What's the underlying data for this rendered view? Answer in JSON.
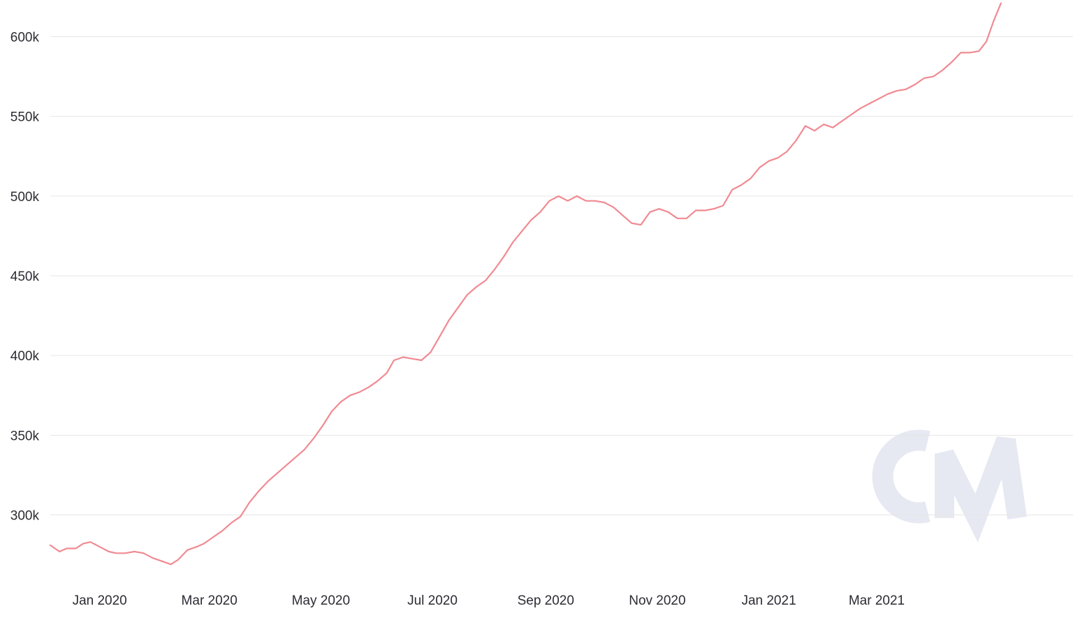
{
  "chart_data": {
    "type": "line",
    "title": "",
    "xlabel": "",
    "ylabel": "",
    "xlim": [
      "2019-12-05",
      "2021-04-30"
    ],
    "ylim": [
      263000,
      623000
    ],
    "grid": true,
    "x_ticks": [
      {
        "date": "2020-01-01",
        "label": "Jan 2020"
      },
      {
        "date": "2020-03-01",
        "label": "Mar 2020"
      },
      {
        "date": "2020-05-01",
        "label": "May 2020"
      },
      {
        "date": "2020-07-01",
        "label": "Jul 2020"
      },
      {
        "date": "2020-09-01",
        "label": "Sep 2020"
      },
      {
        "date": "2020-11-01",
        "label": "Nov 2020"
      },
      {
        "date": "2021-01-01",
        "label": "Jan 2021"
      },
      {
        "date": "2021-03-01",
        "label": "Mar 2021"
      }
    ],
    "y_ticks": [
      {
        "value": 300000,
        "label": "300k"
      },
      {
        "value": 350000,
        "label": "350k"
      },
      {
        "value": 400000,
        "label": "400k"
      },
      {
        "value": 450000,
        "label": "450k"
      },
      {
        "value": 500000,
        "label": "500k"
      },
      {
        "value": 550000,
        "label": "550k"
      },
      {
        "value": 600000,
        "label": "600k"
      }
    ],
    "series": [
      {
        "color": "#f08a92",
        "points": [
          [
            "2019-12-05",
            281000
          ],
          [
            "2019-12-10",
            277000
          ],
          [
            "2019-12-14",
            279000
          ],
          [
            "2019-12-19",
            279000
          ],
          [
            "2019-12-23",
            282000
          ],
          [
            "2019-12-27",
            283000
          ],
          [
            "2020-01-01",
            280000
          ],
          [
            "2020-01-06",
            277000
          ],
          [
            "2020-01-10",
            276000
          ],
          [
            "2020-01-15",
            276000
          ],
          [
            "2020-01-20",
            277000
          ],
          [
            "2020-01-25",
            276000
          ],
          [
            "2020-01-30",
            273000
          ],
          [
            "2020-02-04",
            271000
          ],
          [
            "2020-02-09",
            269000
          ],
          [
            "2020-02-13",
            272000
          ],
          [
            "2020-02-18",
            278000
          ],
          [
            "2020-02-23",
            280000
          ],
          [
            "2020-02-27",
            282000
          ],
          [
            "2020-03-03",
            286000
          ],
          [
            "2020-03-08",
            290000
          ],
          [
            "2020-03-13",
            295000
          ],
          [
            "2020-03-18",
            299000
          ],
          [
            "2020-03-23",
            308000
          ],
          [
            "2020-03-28",
            315000
          ],
          [
            "2020-04-02",
            321000
          ],
          [
            "2020-04-07",
            326000
          ],
          [
            "2020-04-12",
            331000
          ],
          [
            "2020-04-17",
            336000
          ],
          [
            "2020-04-22",
            341000
          ],
          [
            "2020-04-27",
            348000
          ],
          [
            "2020-05-02",
            356000
          ],
          [
            "2020-05-07",
            365000
          ],
          [
            "2020-05-12",
            371000
          ],
          [
            "2020-05-17",
            375000
          ],
          [
            "2020-05-22",
            377000
          ],
          [
            "2020-05-27",
            380000
          ],
          [
            "2020-06-01",
            384000
          ],
          [
            "2020-06-06",
            389000
          ],
          [
            "2020-06-10",
            397000
          ],
          [
            "2020-06-15",
            399000
          ],
          [
            "2020-06-20",
            398000
          ],
          [
            "2020-06-25",
            397000
          ],
          [
            "2020-06-30",
            402000
          ],
          [
            "2020-07-05",
            412000
          ],
          [
            "2020-07-10",
            422000
          ],
          [
            "2020-07-15",
            430000
          ],
          [
            "2020-07-20",
            438000
          ],
          [
            "2020-07-25",
            443000
          ],
          [
            "2020-07-30",
            447000
          ],
          [
            "2020-08-04",
            454000
          ],
          [
            "2020-08-09",
            462000
          ],
          [
            "2020-08-14",
            471000
          ],
          [
            "2020-08-19",
            478000
          ],
          [
            "2020-08-24",
            485000
          ],
          [
            "2020-08-29",
            490000
          ],
          [
            "2020-09-03",
            497000
          ],
          [
            "2020-09-08",
            500000
          ],
          [
            "2020-09-13",
            497000
          ],
          [
            "2020-09-18",
            500000
          ],
          [
            "2020-09-23",
            497000
          ],
          [
            "2020-09-28",
            497000
          ],
          [
            "2020-10-03",
            496000
          ],
          [
            "2020-10-08",
            493000
          ],
          [
            "2020-10-13",
            488000
          ],
          [
            "2020-10-18",
            483000
          ],
          [
            "2020-10-23",
            482000
          ],
          [
            "2020-10-28",
            490000
          ],
          [
            "2020-11-02",
            492000
          ],
          [
            "2020-11-07",
            490000
          ],
          [
            "2020-11-12",
            486000
          ],
          [
            "2020-11-17",
            486000
          ],
          [
            "2020-11-22",
            491000
          ],
          [
            "2020-11-27",
            491000
          ],
          [
            "2020-12-02",
            492000
          ],
          [
            "2020-12-07",
            494000
          ],
          [
            "2020-12-12",
            504000
          ],
          [
            "2020-12-17",
            507000
          ],
          [
            "2020-12-22",
            511000
          ],
          [
            "2020-12-27",
            518000
          ],
          [
            "2021-01-01",
            522000
          ],
          [
            "2021-01-06",
            524000
          ],
          [
            "2021-01-11",
            528000
          ],
          [
            "2021-01-16",
            535000
          ],
          [
            "2021-01-21",
            544000
          ],
          [
            "2021-01-26",
            541000
          ],
          [
            "2021-01-31",
            545000
          ],
          [
            "2021-02-05",
            543000
          ],
          [
            "2021-02-10",
            547000
          ],
          [
            "2021-02-15",
            551000
          ],
          [
            "2021-02-20",
            555000
          ],
          [
            "2021-02-25",
            558000
          ],
          [
            "2021-03-02",
            561000
          ],
          [
            "2021-03-07",
            564000
          ],
          [
            "2021-03-12",
            566000
          ],
          [
            "2021-03-17",
            567000
          ],
          [
            "2021-03-22",
            570000
          ],
          [
            "2021-03-27",
            574000
          ],
          [
            "2021-04-01",
            575000
          ],
          [
            "2021-04-06",
            579000
          ],
          [
            "2021-04-11",
            584000
          ],
          [
            "2021-04-16",
            590000
          ],
          [
            "2021-04-21",
            590000
          ],
          [
            "2021-04-26",
            591000
          ],
          [
            "2021-04-30",
            597000
          ],
          [
            "2021-05-04",
            610000
          ],
          [
            "2021-05-08",
            621000
          ]
        ]
      }
    ]
  },
  "watermark": {
    "color": "#e6e9f2"
  }
}
